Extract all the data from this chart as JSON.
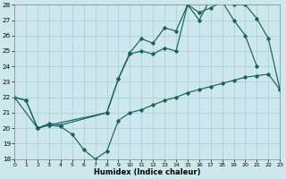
{
  "bg_color": "#cde8ec",
  "grid_color": "#a8cdd2",
  "line_color": "#1a6060",
  "xlim": [
    0,
    23
  ],
  "ylim": [
    18,
    28
  ],
  "yticks": [
    18,
    19,
    20,
    21,
    22,
    23,
    24,
    25,
    26,
    27,
    28
  ],
  "xticks": [
    0,
    1,
    2,
    3,
    4,
    5,
    6,
    7,
    8,
    9,
    10,
    11,
    12,
    13,
    14,
    15,
    16,
    17,
    18,
    19,
    20,
    21,
    22,
    23
  ],
  "xlabel": "Humidex (Indice chaleur)",
  "line1": {
    "x": [
      0,
      1,
      2,
      3,
      4,
      5,
      6,
      7,
      8,
      9,
      10,
      11,
      12,
      13,
      14,
      15,
      16,
      17,
      18,
      19,
      20,
      21,
      22,
      23
    ],
    "y": [
      22,
      21.8,
      20.0,
      20.2,
      20.1,
      19.6,
      18.6,
      18.0,
      18.5,
      20.5,
      21.0,
      21.2,
      21.5,
      21.8,
      22.0,
      22.3,
      22.5,
      22.7,
      22.9,
      23.1,
      23.3,
      23.4,
      23.5,
      22.5
    ]
  },
  "line2": {
    "x": [
      0,
      1,
      2,
      3,
      4,
      8,
      9,
      10,
      11,
      12,
      13,
      14,
      15,
      16,
      17,
      18,
      19,
      20,
      21
    ],
    "y": [
      22,
      21.8,
      20.0,
      20.3,
      20.2,
      21.0,
      23.2,
      24.9,
      25.8,
      25.5,
      26.5,
      26.3,
      28.0,
      27.5,
      27.8,
      28.2,
      27.0,
      26.0,
      24.0
    ]
  },
  "line3": {
    "x": [
      0,
      2,
      3,
      8,
      9,
      10,
      11,
      12,
      13,
      14,
      15,
      16,
      17,
      18,
      19,
      20,
      21,
      22,
      23
    ],
    "y": [
      22,
      20.0,
      20.2,
      21.0,
      23.2,
      24.8,
      25.0,
      24.8,
      25.2,
      25.0,
      28.0,
      27.0,
      28.4,
      28.3,
      28.0,
      28.0,
      27.1,
      25.8,
      22.5
    ]
  }
}
